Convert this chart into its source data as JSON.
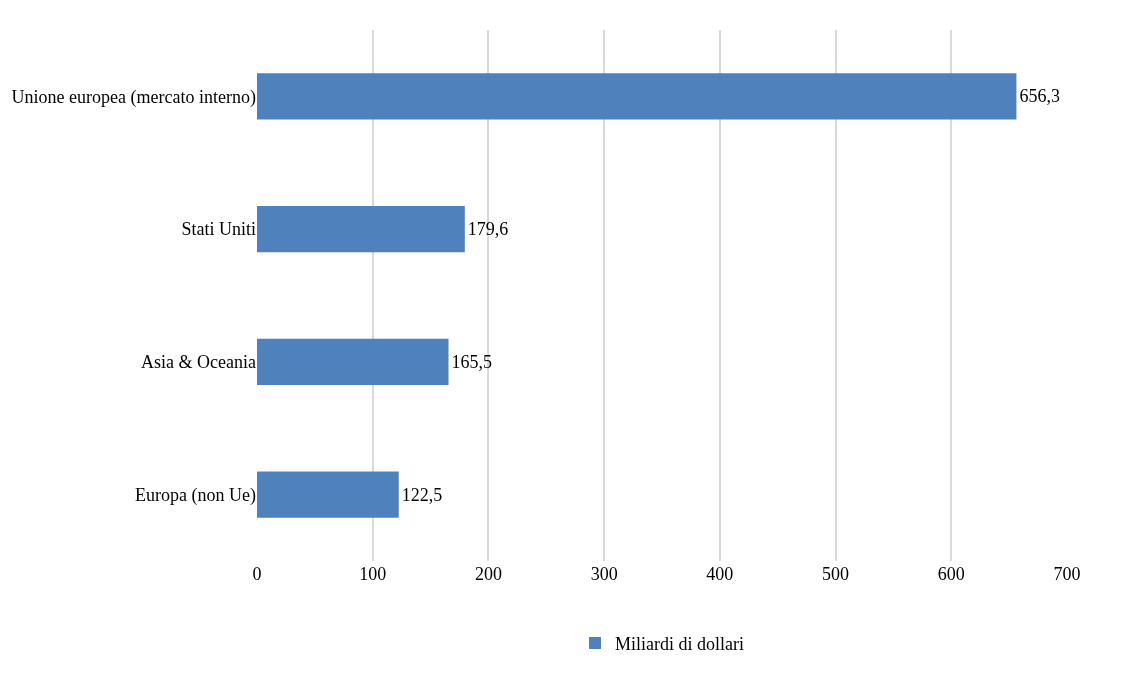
{
  "chart_data": {
    "type": "bar",
    "orientation": "horizontal",
    "categories": [
      "Unione europea (mercato interno)",
      "Stati Uniti",
      "Asia & Oceania",
      "Europa (non Ue)"
    ],
    "series": [
      {
        "name": "Miliardi di dollari",
        "color": "#4f81bd",
        "values": [
          656.3,
          179.6,
          165.5,
          122.5
        ],
        "value_labels": [
          "656,3",
          "179,6",
          "165,5",
          "122,5"
        ]
      }
    ],
    "xlim": [
      0,
      700
    ],
    "xticks": [
      0,
      100,
      200,
      300,
      400,
      500,
      600,
      700
    ],
    "grid": "x",
    "legend": "bottom"
  }
}
